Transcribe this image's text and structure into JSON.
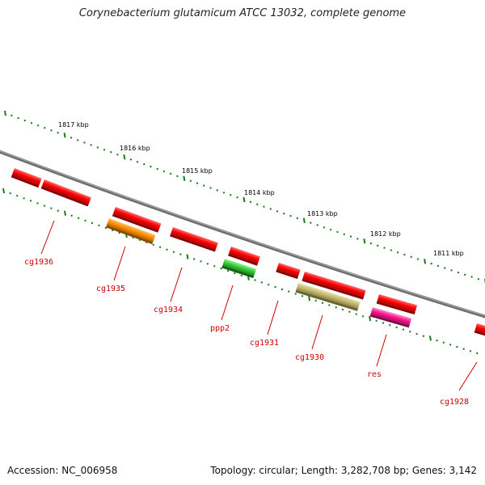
{
  "title": "Corynebacterium glutamicum ATCC 13032, complete genome",
  "accession": "Accession: NC_006958",
  "topology": "Topology: circular; Length: 3,282,708 bp; Genes: 3,142",
  "scale_labels": [
    "1817 kbp",
    "1816 kbp",
    "1815 kbp",
    "1814 kbp",
    "1813 kbp",
    "1812 kbp",
    "1811 kbp"
  ],
  "gene_labels": [
    "cg1936",
    "cg1935",
    "cg1934",
    "ppp2",
    "cg1931",
    "cg1930",
    "res",
    "cg1928"
  ],
  "colors": {
    "backbone": "#808080",
    "scale_ticks": "#1a7a1a",
    "gene_default": "#ff0000",
    "gene_orange": "#ff8c00",
    "gene_green": "#33cc33",
    "gene_khaki": "#c2b870",
    "gene_pink": "#ff1493",
    "label_text": "#cc0000"
  }
}
